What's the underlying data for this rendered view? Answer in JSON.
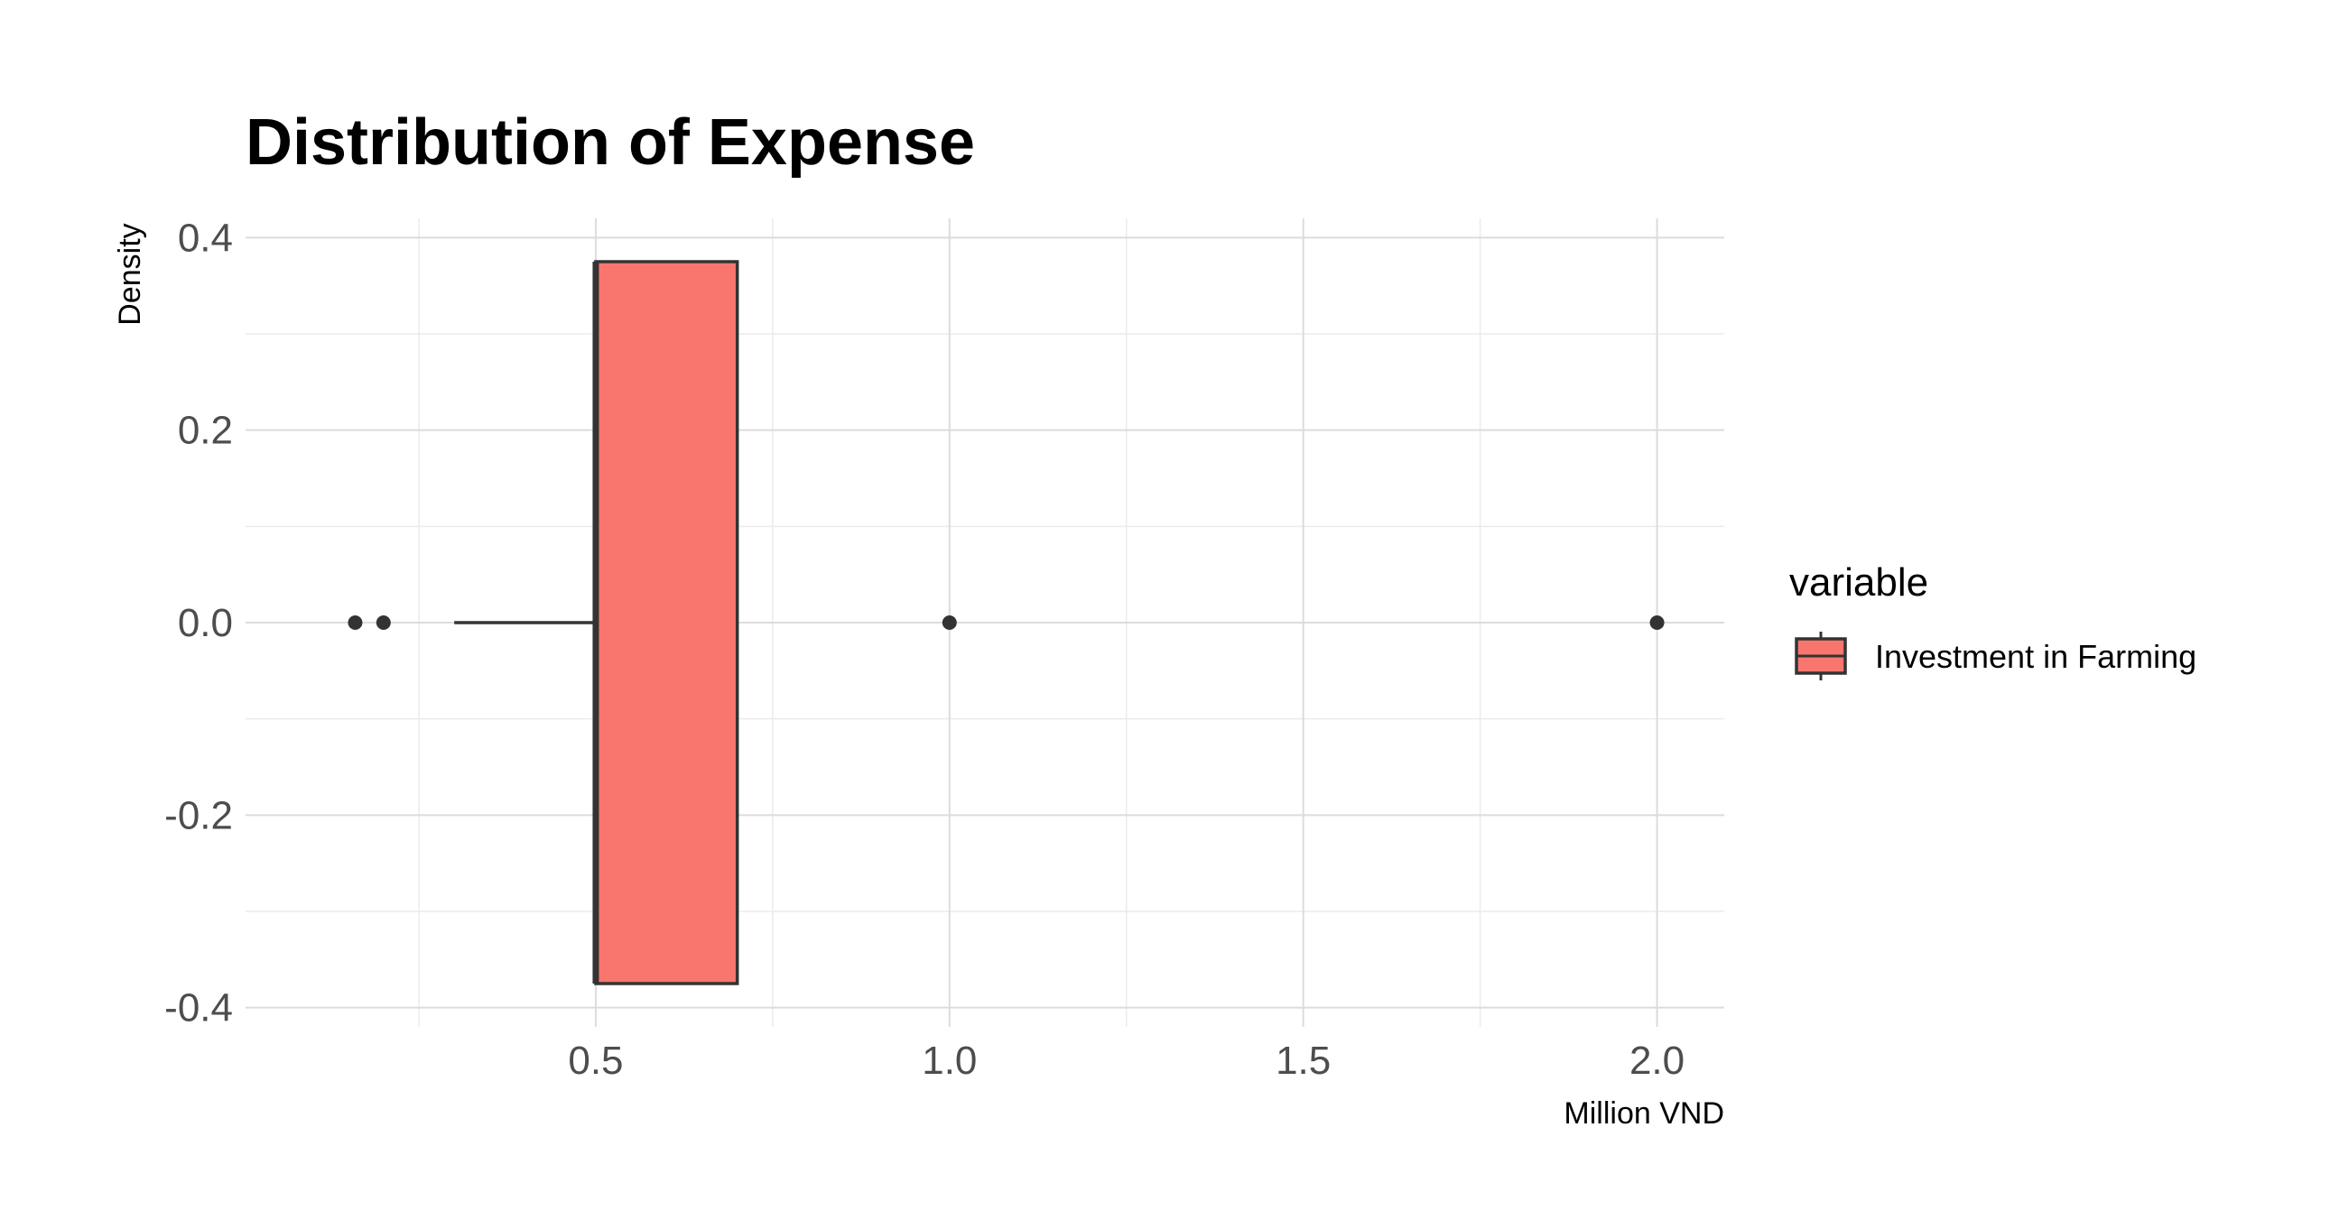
{
  "chart_data": {
    "type": "boxplot",
    "title": "Distribution of Expense",
    "xlabel": "Million VND",
    "ylabel": "Density",
    "xlim": [
      0.005,
      2.095
    ],
    "ylim": [
      -0.42,
      0.42
    ],
    "x_ticks": [
      0.5,
      1.0,
      1.5,
      2.0
    ],
    "x_tick_labels": [
      "0.5",
      "1.0",
      "1.5",
      "2.0"
    ],
    "y_ticks": [
      -0.4,
      -0.2,
      0.0,
      0.2,
      0.4
    ],
    "y_tick_labels": [
      "-0.4",
      "-0.2",
      "0.0",
      "0.2",
      "0.4"
    ],
    "grid": true,
    "legend": {
      "title": "variable",
      "position": "right",
      "entries": [
        {
          "label": "Investment in Farming",
          "color": "#F8766D"
        }
      ]
    },
    "series": [
      {
        "name": "Investment in Farming",
        "color": "#F8766D",
        "outline_color": "#333333",
        "orientation": "horizontal",
        "min": 0.3,
        "q1": 0.5,
        "median": 0.5,
        "q3": 0.7,
        "max": 0.7,
        "box_y_range": [
          -0.375,
          0.375
        ],
        "outliers": [
          0.16,
          0.2,
          1.0,
          2.0
        ]
      }
    ]
  }
}
